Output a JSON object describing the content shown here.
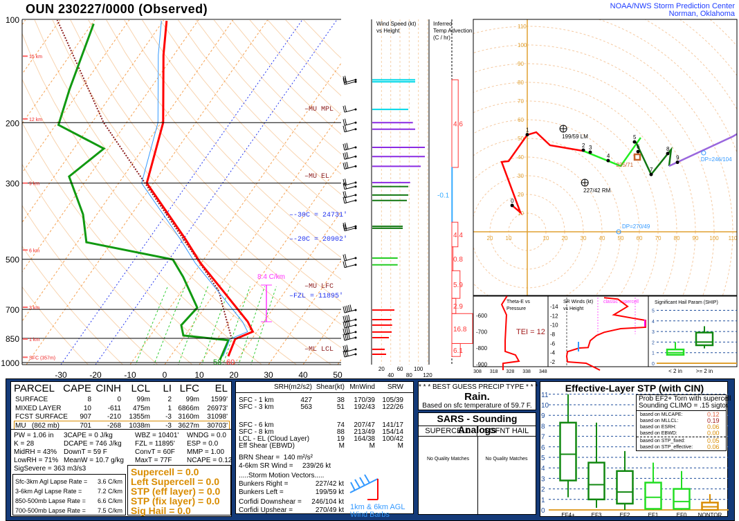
{
  "header": {
    "title": "OUN   230227/0000  (Observed)",
    "org_line1": "NOAA/NWS Storm Prediction Center",
    "org_line2": "Norman, Oklahoma"
  },
  "chart_data": [
    {
      "type": "line",
      "name": "skew-t",
      "pressure_ticks": [
        "100",
        "200",
        "300",
        "500",
        "700",
        "850",
        "1000"
      ],
      "temp_ticks": [
        "-30",
        "-20",
        "-10",
        "0",
        "10",
        "20",
        "30",
        "40",
        "50"
      ],
      "height_labels": [
        {
          "p": 128,
          "label": "15 km"
        },
        {
          "p": 195,
          "label": "12 km"
        },
        {
          "p": 300,
          "label": "9 km"
        },
        {
          "p": 470,
          "label": "6 km"
        },
        {
          "p": 690,
          "label": "3 km"
        },
        {
          "p": 854,
          "label": "1 km"
        },
        {
          "p": 965,
          "label": "SFC (357m)"
        }
      ],
      "temperature": [
        [
          959,
          16.7
        ],
        [
          854,
          15.2
        ],
        [
          813,
          18.8
        ],
        [
          760,
          15.3
        ],
        [
          617,
          1.8
        ],
        [
          513,
          -10.2
        ],
        [
          436,
          -19.5
        ],
        [
          300,
          -41.9
        ],
        [
          200,
          -49.4
        ],
        [
          127,
          -63
        ],
        [
          101,
          -69
        ]
      ],
      "dewpoint": [
        [
          982,
          15
        ],
        [
          861,
          13.5
        ],
        [
          834,
          -0.5
        ],
        [
          778,
          -3.2
        ],
        [
          692,
          -2.1
        ],
        [
          563,
          -12.4
        ],
        [
          501,
          -18.9
        ],
        [
          446,
          -47.4
        ],
        [
          370,
          -54
        ],
        [
          287,
          -65.7
        ],
        [
          238,
          -61.3
        ],
        [
          203,
          -79.2
        ],
        [
          160,
          -83.2
        ],
        [
          103,
          -89.5
        ]
      ],
      "parcel": [
        [
          854,
          14.2
        ],
        [
          617,
          0.6
        ],
        [
          200,
          -66.6
        ],
        [
          100,
          -101
        ]
      ],
      "annotations": {
        "mu_mpl": "MU  MPL",
        "mu_el": "MU  EL",
        "m30": "-30C = 24731'",
        "m20": "-20C = 20902'",
        "fzl": "FZL = 11895'",
        "mu_lfc": "MU LFC",
        "ml_lcl": "ML  LCL",
        "lapse": "8.4 C/km",
        "sfc_td": "58",
        "sfc_t": "60"
      },
      "colors": {
        "temp": "#ff0000",
        "dewpoint": "#119911",
        "parcel": "#8b1a1a",
        "isotherm": "#f5a050",
        "adiabat": "#f8d4b0",
        "mixing": "#33cc33",
        "highlight": "#2233ee"
      }
    },
    {
      "type": "bar",
      "name": "wind-speed-vs-height",
      "title": "Wind Speed (kt)",
      "subtitle": "vs Height",
      "x_ticks": [
        "20",
        "40",
        "60",
        "80",
        "100",
        "120"
      ],
      "bars": [
        [
          150,
          93,
          "#00d8e8"
        ],
        [
          152,
          93,
          "#00d8e8"
        ],
        [
          183,
          78,
          "#00d8e8"
        ],
        [
          200,
          88,
          "#8a2be2"
        ],
        [
          209,
          93,
          "#8a2be2"
        ],
        [
          236,
          114,
          "#8a2be2"
        ],
        [
          251,
          114,
          "#8a2be2"
        ],
        [
          268,
          105,
          "#8a2be2"
        ],
        [
          299,
          82,
          "#8a2be2"
        ],
        [
          307,
          78,
          "#117711"
        ],
        [
          325,
          78,
          "#117711"
        ],
        [
          337,
          75,
          "#117711"
        ],
        [
          401,
          66,
          "#117711"
        ],
        [
          406,
          66,
          "#117711"
        ],
        [
          496,
          55,
          "#22cc22"
        ],
        [
          519,
          55,
          "#22cc22"
        ],
        [
          703,
          48,
          "#ff0000"
        ],
        [
          750,
          42,
          "#ff0000"
        ],
        [
          778,
          43,
          "#ff0000"
        ],
        [
          815,
          42,
          "#ff0000"
        ],
        [
          846,
          36,
          "#ff0000"
        ],
        [
          915,
          27,
          "#ff0000"
        ],
        [
          946,
          30,
          "#ff0000"
        ]
      ]
    },
    {
      "type": "bar",
      "name": "inferred-temp-advection",
      "title": "Inferred",
      "subtitle": "Temp Advection",
      "unit": "(C / hr)",
      "layers": [
        {
          "top": 150,
          "bot": 270,
          "v": "4.6"
        },
        {
          "top": 270,
          "bot": 390,
          "v": "-0.1"
        },
        {
          "top": 390,
          "bot": 460,
          "v": "4.4"
        },
        {
          "top": 460,
          "bot": 540,
          "v": "0.8"
        },
        {
          "top": 540,
          "bot": 650,
          "v": "5.9"
        },
        {
          "top": 650,
          "bot": 720,
          "v": "2.9"
        },
        {
          "top": 720,
          "bot": 880,
          "v": "16.8"
        },
        {
          "top": 880,
          "bot": 960,
          "v": "6.1"
        }
      ]
    },
    {
      "type": "line",
      "name": "hodograph",
      "ring_labels": [
        "10",
        "20",
        "30",
        "40",
        "50",
        "60",
        "70",
        "80",
        "90",
        "100",
        "110"
      ],
      "segments": [
        {
          "color": "#ff0000",
          "pts": [
            [
              -8.1,
              14.1
            ],
            [
              -3.7,
              10.4
            ],
            [
              -13.7,
              37.4
            ],
            [
              -10,
              37.8
            ],
            [
              0,
              51.9
            ],
            [
              4.8,
              53.3
            ],
            [
              12.2,
              46.3
            ],
            [
              30,
              43.3
            ]
          ]
        },
        {
          "color": "#22ee22",
          "pts": [
            [
              30,
              43.3
            ],
            [
              50,
              35.2
            ],
            [
              60.7,
              50.4
            ]
          ]
        },
        {
          "color": "#117711",
          "pts": [
            [
              58.1,
              48.1
            ],
            [
              66.3,
              30.7
            ],
            [
              77,
              44
            ],
            [
              75.9,
              35.2
            ]
          ]
        },
        {
          "color": "#9966dd",
          "pts": [
            [
              75.9,
              35.2
            ],
            [
              110,
              51
            ],
            [
              125,
              60
            ]
          ]
        }
      ],
      "points": [
        [
          "0",
          -8.1,
          14.1
        ],
        [
          "1",
          0,
          52
        ],
        [
          "2",
          30,
          43.7
        ],
        [
          "3",
          33.7,
          42.6
        ],
        [
          "4",
          43.3,
          38.1
        ],
        [
          "5",
          57.4,
          48.1
        ],
        [
          "6",
          59.3,
          42.9
        ],
        [
          "7",
          66.3,
          30.7
        ],
        [
          "8",
          75.2,
          41.9
        ],
        [
          "9",
          80.4,
          37.2
        ]
      ],
      "rm": {
        "u": 30.8,
        "v": 26.3,
        "label": "227/42 RM"
      },
      "lm": {
        "u": 19.3,
        "v": 55.2,
        "label": "199/59 LM"
      },
      "mean": {
        "u": 58.9,
        "v": 40,
        "label": "235/71"
      },
      "dp1": {
        "u": 94.4,
        "v": 42.2,
        "label": "DP=246/104"
      },
      "dp2": {
        "u": 48.9,
        "v": 0,
        "label": "DP=270/49"
      }
    },
    {
      "type": "line",
      "name": "theta-e-vs-pressure",
      "title": "Theta-E vs",
      "subtitle": "Pressure",
      "x_ticks": [
        "308",
        "318",
        "328",
        "338",
        "348"
      ],
      "y_ticks": [
        "600",
        "700",
        "800",
        "900"
      ],
      "tei": "TEI = 12",
      "points": [
        [
          481,
          326
        ],
        [
          532,
          322.8
        ],
        [
          596,
          325.7
        ],
        [
          753,
          324.9
        ],
        [
          821,
          324.9
        ],
        [
          843,
          331.2
        ],
        [
          881,
          333.3
        ],
        [
          894,
          323.6
        ],
        [
          936,
          323.6
        ]
      ]
    },
    {
      "type": "line",
      "name": "sr-winds-vs-height",
      "title": "SR Winds (kt)",
      "subtitle": "vs Height",
      "y_ticks": [
        "2",
        "4",
        "6",
        "8",
        "10",
        "12",
        "14"
      ],
      "label": "classic supercell",
      "points": [
        [
          0.2,
          26.7
        ],
        [
          1.7,
          15.6
        ],
        [
          2,
          0.6
        ],
        [
          3.2,
          0
        ],
        [
          4.2,
          0.6
        ],
        [
          5,
          10
        ],
        [
          5.1,
          17.2
        ],
        [
          6.6,
          18.9
        ],
        [
          7.7,
          23.9
        ],
        [
          8.4,
          30
        ],
        [
          9.2,
          43.3
        ],
        [
          9.5,
          63.3
        ],
        [
          11,
          63.3
        ],
        [
          11.4,
          54.4
        ],
        [
          12.2,
          37.8
        ],
        [
          14,
          48.9
        ],
        [
          15.6,
          41.1
        ],
        [
          15.9,
          30
        ]
      ]
    },
    {
      "type": "bar",
      "name": "ship",
      "title": "Significant Hail Param (SHIP)",
      "y_ticks": [
        "0",
        "1",
        "2",
        "3",
        "4",
        "5"
      ],
      "boxes": [
        {
          "label": "< 2 in",
          "lo": 0.8,
          "q1": 0.8,
          "med": 1,
          "q3": 1.3,
          "hi": 2,
          "color": "#22dd22"
        },
        {
          "label": ">= 2 in",
          "lo": 1.4,
          "q1": 1.7,
          "med": 2,
          "q3": 2.9,
          "hi": 3.5,
          "color": "#118811"
        }
      ]
    },
    {
      "type": "bar",
      "name": "effective-layer-stp",
      "title": "Effective-Layer STP (with CIN)",
      "y_ticks": [
        "0",
        "1",
        "2",
        "3",
        "4",
        "5",
        "6",
        "7",
        "8",
        "9",
        "10",
        "11"
      ],
      "boxes": [
        {
          "label": "EF4+",
          "lo": 1.2,
          "q1": 2.8,
          "med": 5.3,
          "q3": 8.3,
          "hi": 11,
          "color": "#118811"
        },
        {
          "label": "EF3",
          "lo": 0.2,
          "q1": 1,
          "med": 2.4,
          "q3": 4.5,
          "hi": 8.3,
          "color": "#118811"
        },
        {
          "label": "EF2",
          "lo": 0,
          "q1": 0.6,
          "med": 1.7,
          "q3": 3.7,
          "hi": 5.6,
          "color": "#118811"
        },
        {
          "label": "EF1",
          "lo": 0,
          "q1": 0.1,
          "med": 1.2,
          "q3": 2.6,
          "hi": 4.5,
          "color": "#22dd22"
        },
        {
          "label": "EF0",
          "lo": 0,
          "q1": 0.1,
          "med": 0.8,
          "q3": 2,
          "hi": 3.7,
          "color": "#22dd22"
        },
        {
          "label": "NONTOR",
          "lo": 0,
          "q1": 0,
          "med": 0.3,
          "q3": 0.7,
          "hi": 1.5,
          "color": "#d98c00"
        }
      ]
    }
  ],
  "parcel_table": {
    "headers": [
      "PARCEL",
      "CAPE",
      "CINH",
      "LCL",
      "LI",
      "LFC",
      "EL"
    ],
    "rows": [
      [
        "SURFACE",
        "8",
        "0",
        "99m",
        "2",
        "99m",
        "1599'"
      ],
      [
        "MIXED LAYER",
        "10",
        "-611",
        "475m",
        "1",
        "6866m",
        "26973'"
      ],
      [
        "FCST SURFACE",
        "907",
        "-210",
        "1355m",
        "-3",
        "3160m",
        "31098'"
      ],
      [
        "MU   (862 mb)",
        "701",
        "-268",
        "1038m",
        "-3",
        "3627m",
        "30703'"
      ]
    ]
  },
  "indices": [
    [
      "PW = 1.06 in",
      "3CAPE = 0 J/kg",
      "WBZ = 10401'",
      "WNDG = 0.0"
    ],
    [
      "K = 28",
      "DCAPE = 746 J/kg",
      "FZL = 11895'",
      "ESP = 0.0"
    ],
    [
      "MidRH = 43%",
      "DownT = 59 F",
      "ConvT = 60F",
      "MMP = 1.00"
    ],
    [
      "LowRH = 71%",
      "MeanW = 10.7 g/kg",
      "MaxT = 77F",
      "NCAPE = 0.12"
    ],
    [
      "SigSevere = 363 m3/s3",
      "",
      "",
      ""
    ]
  ],
  "lapse_rates": [
    [
      "Sfc-3km Agl Lapse Rate =",
      "3.6 C/km"
    ],
    [
      "3-6km Agl Lapse Rate =",
      "7.2 C/km"
    ],
    [
      "850-500mb Lapse Rate =",
      "6.6 C/km"
    ],
    [
      "700-500mb Lapse Rate =",
      "7.5 C/km"
    ]
  ],
  "composites": [
    "Supercell = 0.0",
    "Left Supercell = 0.0",
    "STP (eff layer) = 0.0",
    "STP (fix layer) = 0.0",
    "Sig Hail = 0.0"
  ],
  "kinematics": {
    "headers": [
      "SRH(m2/s2)",
      "Shear(kt)",
      "MnWind",
      "SRW"
    ],
    "rows": [
      [
        "SFC - 1 km",
        "427",
        "38",
        "170/39",
        "105/39"
      ],
      [
        "SFC - 3 km",
        "563",
        "51",
        "192/43",
        "122/26"
      ],
      [
        "SFC - 6 km",
        "",
        "74",
        "207/47",
        "141/17"
      ],
      [
        "SFC - 8 km",
        "",
        "88",
        "213/49",
        "154/14"
      ],
      [
        "LCL - EL (Cloud Layer)",
        "",
        "19",
        "164/38",
        "100/42"
      ],
      [
        "Eff Shear (EBWD)",
        "",
        "M",
        "M",
        "M"
      ]
    ],
    "brn": "BRN Shear =  140 m²/s²",
    "sr46_label": "4-6km SR Wind =",
    "sr46": "239/26 kt",
    "smv": ".....Storm Motion Vectors.....",
    "motion": [
      [
        "Bunkers Right =",
        "227/42 kt"
      ],
      [
        "Bunkers Left =",
        "199/59 kt"
      ],
      [
        "Corfidi Downshear =",
        "246/104 kt"
      ],
      [
        "Corfidi Upshear =",
        "270/49 kt"
      ]
    ],
    "barb_label1": "1km & 6km AGL",
    "barb_label2": "Wind Barbs"
  },
  "precip": {
    "title": "* * * BEST GUESS PRECIP TYPE * * *",
    "type": "Rain.",
    "basis": "Based on sfc temperature of 59.7 F."
  },
  "sars": {
    "title": "SARS - Sounding Analogs",
    "col1": "SUPERCELL",
    "col2": "SGFNT HAIL",
    "none1": "No Quality Matches",
    "none2": "No Quality Matches"
  },
  "stp_probs": {
    "l1": "Prob EF2+ Torn with supercell",
    "l2": "Sounding CLIMO = .15 sigtor",
    "rows": [
      [
        "based on MLCAPE:",
        "0.12",
        "#e06040"
      ],
      [
        "based on MLLCL:",
        "0.19",
        "#a01818"
      ],
      [
        "based on ESRH:",
        "0.06",
        "#d98c00"
      ],
      [
        "based on EBWD:",
        "0.00",
        "#d98c00"
      ],
      [
        "based on STP_fixed:",
        "0.05",
        "#d98c00"
      ],
      [
        "based on STP_effective:",
        "0.06",
        "#d98c00"
      ]
    ]
  }
}
